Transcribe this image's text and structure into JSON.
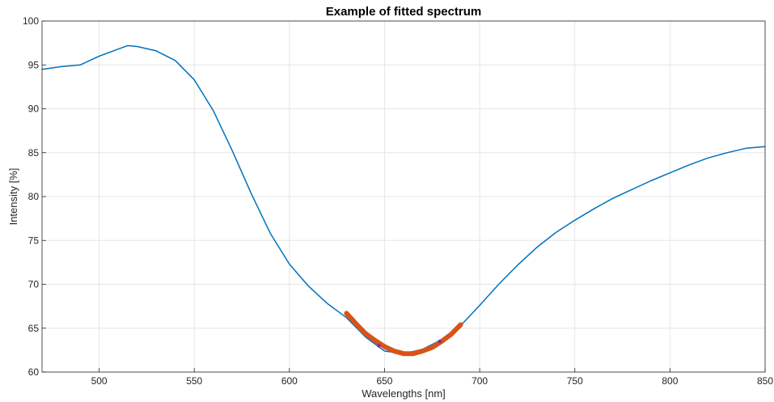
{
  "chart_data": {
    "type": "line",
    "title": "Example of fitted spectrum",
    "xlabel": "Wavelengths [nm]",
    "ylabel": "Intensity [%]",
    "xlim": [
      470,
      850
    ],
    "ylim": [
      60,
      100
    ],
    "xticks": [
      500,
      550,
      600,
      650,
      700,
      750,
      800,
      850
    ],
    "yticks": [
      60,
      65,
      70,
      75,
      80,
      85,
      90,
      95,
      100
    ],
    "grid": true,
    "series": [
      {
        "color": "#0072BD",
        "x": [
          470,
          480,
          490,
          500,
          510,
          515,
          520,
          530,
          540,
          550,
          560,
          570,
          580,
          590,
          600,
          610,
          620,
          630,
          640,
          650,
          660,
          670,
          680,
          690,
          700,
          710,
          720,
          730,
          740,
          750,
          760,
          770,
          780,
          790,
          800,
          810,
          820,
          830,
          840,
          850
        ],
        "y": [
          94.5,
          94.8,
          95.0,
          96.0,
          96.8,
          97.2,
          97.1,
          96.6,
          95.5,
          93.3,
          89.8,
          85.2,
          80.3,
          75.8,
          72.3,
          69.8,
          67.8,
          66.2,
          64.0,
          62.4,
          62.1,
          62.6,
          63.7,
          65.3,
          67.6,
          70.0,
          72.2,
          74.2,
          75.9,
          77.3,
          78.6,
          79.8,
          80.8,
          81.8,
          82.7,
          83.6,
          84.4,
          85.0,
          85.5,
          85.7
        ]
      },
      {
        "color": "#D95319",
        "x": [
          630,
          635,
          640,
          645,
          650,
          655,
          660,
          665,
          670,
          675,
          680,
          685,
          690
        ],
        "y": [
          66.7,
          65.5,
          64.4,
          63.6,
          62.9,
          62.4,
          62.1,
          62.1,
          62.4,
          62.8,
          63.5,
          64.3,
          65.4
        ]
      }
    ],
    "markers": [
      {
        "x": 647,
        "y": 63.0,
        "color": "#7E2F8E"
      },
      {
        "x": 679,
        "y": 63.5,
        "color": "#7E2F8E"
      }
    ]
  }
}
